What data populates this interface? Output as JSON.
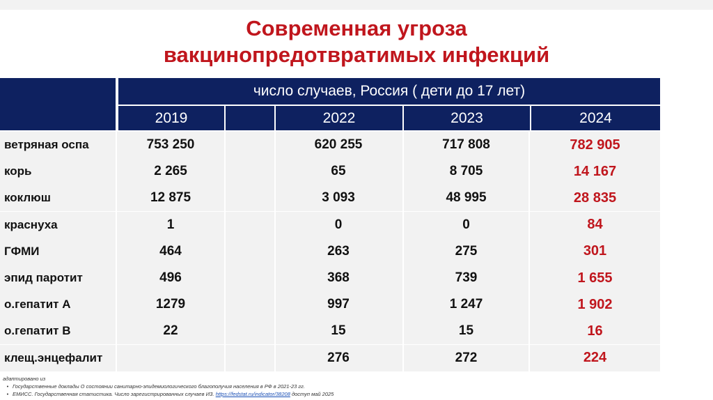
{
  "title": {
    "line1": "Современная угроза",
    "line2": "вакцинопредотвратимых инфекций"
  },
  "table": {
    "header_main": "число случаев, Россия ( дети до 17 лет)",
    "years": [
      "2019",
      "",
      "2022",
      "2023",
      "2024"
    ],
    "rows": [
      {
        "label": "ветряная оспа",
        "values": [
          "753 250",
          "",
          "620 255",
          "717 808",
          "782 905"
        ]
      },
      {
        "label": "корь",
        "values": [
          "2 265",
          "",
          "65",
          "8 705",
          "14 167"
        ]
      },
      {
        "label": "коклюш",
        "values": [
          "12 875",
          "",
          "3 093",
          "48 995",
          "28 835"
        ]
      },
      {
        "label": "краснуха",
        "values": [
          "1",
          "",
          "0",
          "0",
          "84"
        ]
      },
      {
        "label": "ГФМИ",
        "values": [
          "464",
          "",
          "263",
          "275",
          "301"
        ]
      },
      {
        "label": "эпид паротит",
        "values": [
          "496",
          "",
          "368",
          "739",
          "1 655"
        ]
      },
      {
        "label": "о.гепатит А",
        "values": [
          "1279",
          "",
          "997",
          "1 247",
          "1 902"
        ]
      },
      {
        "label": "о.гепатит В",
        "values": [
          "22",
          "",
          "15",
          "15",
          "16"
        ]
      },
      {
        "label": "клещ.энцефалит",
        "values": [
          "",
          "",
          "276",
          "272",
          "224"
        ]
      }
    ],
    "highlight_color": "#c0161d",
    "header_color": "#0e2160"
  },
  "footnote": {
    "intro": "адаптировано из",
    "source1": "Государственные доклады О состоянии санитарно-эпидемиологического благополучия населения в РФ в 2021-23 гг.",
    "source2_prefix": "ЕМИСС. Государственная статистика. Число зарегистрированных случаев ИЗ.",
    "source2_link": "https://fedstat.ru/indicator/38208",
    "source2_suffix": "доступ май 2025"
  }
}
